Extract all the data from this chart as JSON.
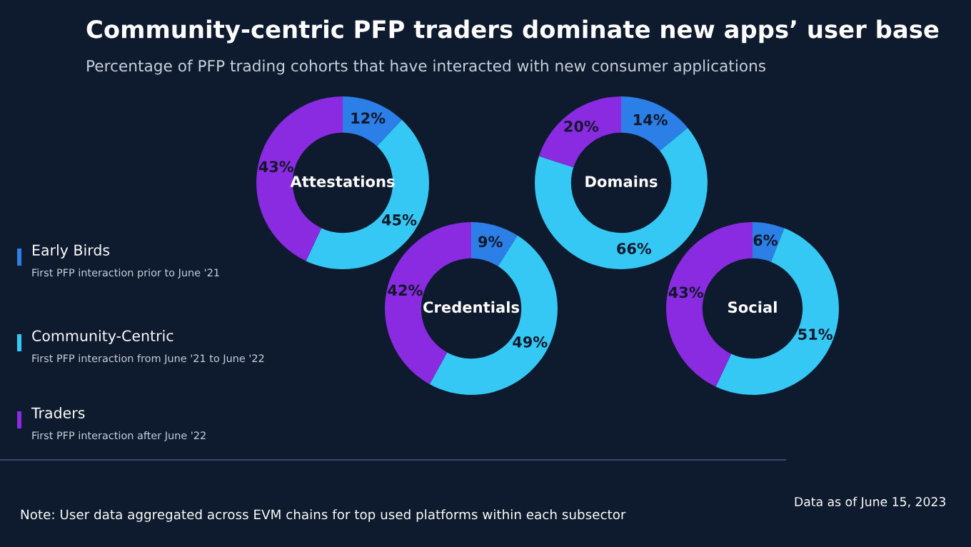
{
  "chart_data": [
    {
      "type": "other",
      "title": "Community-centric PFP traders dominate new apps’ user base",
      "subtitle": "Percentage of PFP trading cohorts that have interacted with new consumer applications",
      "annotations": [
        "First PFP interaction prior to June '21",
        "First PFP interaction from June '21 to June '22",
        "First PFP interaction after June '22",
        "Note: User data aggregated across EVM chains for top used platforms within each subsector",
        "Data as of June 15, 2023"
      ]
    },
    {
      "type": "donut",
      "title": "Attestations",
      "categories": [
        "Early Birds",
        "Community-Centric",
        "Traders"
      ],
      "values": [
        12,
        45,
        43
      ],
      "value_labels": [
        "12%",
        "45%",
        "43%"
      ],
      "colors": [
        "#2b7fe6",
        "#35c8f4",
        "#8a2be2"
      ],
      "legend": "left"
    },
    {
      "type": "donut",
      "title": "Domains",
      "categories": [
        null,
        null,
        null
      ],
      "values": [
        14,
        66,
        20
      ],
      "value_labels": [
        "14%",
        "66%",
        "20%"
      ],
      "colors": [
        "#2b7fe6",
        "#35c8f4",
        "#8a2be2"
      ]
    },
    {
      "type": "donut",
      "title": "Credentials",
      "categories": [
        null,
        null,
        null
      ],
      "values": [
        9,
        49,
        42
      ],
      "value_labels": [
        "9%",
        "49%",
        "42%"
      ],
      "colors": [
        "#2b7fe6",
        "#35c8f4",
        "#8a2be2"
      ]
    },
    {
      "type": "donut",
      "title": "Social",
      "categories": [
        null,
        null,
        null
      ],
      "values": [
        6,
        51,
        43
      ],
      "value_labels": [
        "6%",
        "51%",
        "43%"
      ],
      "colors": [
        "#2b7fe6",
        "#35c8f4",
        "#8a2be2"
      ]
    }
  ]
}
